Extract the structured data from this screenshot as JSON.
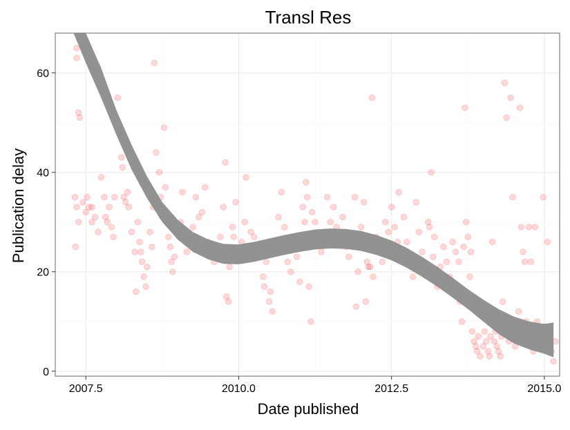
{
  "chart_data": {
    "type": "scatter",
    "title": "Transl Res",
    "xlabel": "Date published",
    "ylabel": "Publication delay",
    "xlim": [
      2007.0,
      2015.25
    ],
    "ylim": [
      -1,
      68
    ],
    "xticks": [
      2007.5,
      2010.0,
      2012.5,
      2015.0
    ],
    "xtick_labels": [
      "2007.5",
      "2010.0",
      "2012.5",
      "2015.0"
    ],
    "yticks": [
      0,
      20,
      40,
      60
    ],
    "ytick_labels": [
      "0",
      "20",
      "40",
      "60"
    ],
    "grid": true,
    "legend": "none",
    "point_color": "#ff0000",
    "point_opacity": 0.15,
    "smooth_color": "#8c8c8c",
    "points": [
      [
        2007.35,
        65
      ],
      [
        2007.35,
        63
      ],
      [
        2007.38,
        52
      ],
      [
        2007.4,
        51
      ],
      [
        2007.32,
        35
      ],
      [
        2007.35,
        33
      ],
      [
        2007.38,
        30
      ],
      [
        2007.33,
        25
      ],
      [
        2007.45,
        34
      ],
      [
        2007.5,
        32
      ],
      [
        2007.55,
        33
      ],
      [
        2007.6,
        30
      ],
      [
        2007.65,
        31
      ],
      [
        2007.7,
        28
      ],
      [
        2007.52,
        35
      ],
      [
        2007.6,
        33
      ],
      [
        2007.75,
        39
      ],
      [
        2007.8,
        35
      ],
      [
        2007.82,
        31
      ],
      [
        2007.85,
        30
      ],
      [
        2007.88,
        33
      ],
      [
        2007.92,
        29
      ],
      [
        2007.95,
        27
      ],
      [
        2007.97,
        35
      ],
      [
        2008.02,
        55
      ],
      [
        2008.05,
        48
      ],
      [
        2008.08,
        43
      ],
      [
        2008.1,
        41
      ],
      [
        2008.12,
        35
      ],
      [
        2008.15,
        34
      ],
      [
        2008.18,
        36
      ],
      [
        2008.2,
        33
      ],
      [
        2008.25,
        28
      ],
      [
        2008.3,
        24
      ],
      [
        2008.32,
        16
      ],
      [
        2008.35,
        30
      ],
      [
        2008.38,
        26
      ],
      [
        2008.4,
        24
      ],
      [
        2008.42,
        22
      ],
      [
        2008.45,
        19
      ],
      [
        2008.48,
        17
      ],
      [
        2008.5,
        21
      ],
      [
        2008.55,
        28
      ],
      [
        2008.58,
        25
      ],
      [
        2008.6,
        33
      ],
      [
        2008.62,
        62
      ],
      [
        2008.65,
        44
      ],
      [
        2008.7,
        40
      ],
      [
        2008.72,
        35
      ],
      [
        2008.75,
        31
      ],
      [
        2008.78,
        49
      ],
      [
        2008.8,
        37
      ],
      [
        2008.85,
        27
      ],
      [
        2008.88,
        25
      ],
      [
        2008.9,
        22
      ],
      [
        2008.92,
        20
      ],
      [
        2008.95,
        23
      ],
      [
        2009.0,
        28
      ],
      [
        2009.05,
        30
      ],
      [
        2009.08,
        36
      ],
      [
        2009.1,
        27
      ],
      [
        2009.15,
        24
      ],
      [
        2009.2,
        26
      ],
      [
        2009.25,
        29
      ],
      [
        2009.3,
        35
      ],
      [
        2009.35,
        31
      ],
      [
        2009.4,
        32
      ],
      [
        2009.45,
        37
      ],
      [
        2009.5,
        26
      ],
      [
        2009.55,
        23
      ],
      [
        2009.6,
        22
      ],
      [
        2009.62,
        25
      ],
      [
        2009.65,
        24
      ],
      [
        2009.7,
        27
      ],
      [
        2009.75,
        33
      ],
      [
        2009.78,
        42
      ],
      [
        2009.8,
        15
      ],
      [
        2009.83,
        14
      ],
      [
        2009.85,
        21
      ],
      [
        2009.88,
        24
      ],
      [
        2009.9,
        29
      ],
      [
        2009.92,
        27
      ],
      [
        2009.95,
        34
      ],
      [
        2010.0,
        23
      ],
      [
        2010.05,
        26
      ],
      [
        2010.1,
        30
      ],
      [
        2010.12,
        39
      ],
      [
        2010.15,
        25
      ],
      [
        2010.2,
        28
      ],
      [
        2010.25,
        27
      ],
      [
        2010.3,
        23
      ],
      [
        2010.35,
        24
      ],
      [
        2010.4,
        19
      ],
      [
        2010.42,
        17
      ],
      [
        2010.45,
        22
      ],
      [
        2010.5,
        14
      ],
      [
        2010.52,
        16
      ],
      [
        2010.55,
        12
      ],
      [
        2010.6,
        25
      ],
      [
        2010.65,
        31
      ],
      [
        2010.7,
        36
      ],
      [
        2010.75,
        29
      ],
      [
        2010.8,
        22
      ],
      [
        2010.85,
        20
      ],
      [
        2010.9,
        27
      ],
      [
        2010.95,
        23
      ],
      [
        2011.0,
        18
      ],
      [
        2011.05,
        33
      ],
      [
        2011.08,
        30
      ],
      [
        2011.1,
        38
      ],
      [
        2011.12,
        35
      ],
      [
        2011.15,
        17
      ],
      [
        2011.18,
        10
      ],
      [
        2011.2,
        32
      ],
      [
        2011.25,
        30
      ],
      [
        2011.3,
        26
      ],
      [
        2011.35,
        24
      ],
      [
        2011.4,
        28
      ],
      [
        2011.45,
        35
      ],
      [
        2011.5,
        30
      ],
      [
        2011.55,
        33
      ],
      [
        2011.6,
        29
      ],
      [
        2011.65,
        27
      ],
      [
        2011.7,
        31
      ],
      [
        2011.75,
        25
      ],
      [
        2011.8,
        23
      ],
      [
        2011.85,
        27
      ],
      [
        2011.9,
        35
      ],
      [
        2011.92,
        13
      ],
      [
        2011.95,
        20
      ],
      [
        2012.0,
        29
      ],
      [
        2012.05,
        34
      ],
      [
        2012.08,
        14
      ],
      [
        2012.1,
        22
      ],
      [
        2012.12,
        21
      ],
      [
        2012.15,
        21
      ],
      [
        2012.18,
        55
      ],
      [
        2012.2,
        19
      ],
      [
        2012.25,
        27
      ],
      [
        2012.3,
        25
      ],
      [
        2012.35,
        22
      ],
      [
        2012.4,
        30
      ],
      [
        2012.45,
        28
      ],
      [
        2012.5,
        33
      ],
      [
        2012.55,
        29
      ],
      [
        2012.6,
        26
      ],
      [
        2012.62,
        36
      ],
      [
        2012.65,
        24
      ],
      [
        2012.7,
        31
      ],
      [
        2012.75,
        26
      ],
      [
        2012.8,
        22
      ],
      [
        2012.85,
        19
      ],
      [
        2012.9,
        34
      ],
      [
        2012.95,
        28
      ],
      [
        2013.0,
        24
      ],
      [
        2013.05,
        20
      ],
      [
        2013.1,
        30
      ],
      [
        2013.12,
        29
      ],
      [
        2013.15,
        40
      ],
      [
        2013.18,
        23
      ],
      [
        2013.2,
        27
      ],
      [
        2013.25,
        17
      ],
      [
        2013.3,
        21
      ],
      [
        2013.35,
        25
      ],
      [
        2013.4,
        22
      ],
      [
        2013.45,
        19
      ],
      [
        2013.5,
        26
      ],
      [
        2013.55,
        24
      ],
      [
        2013.6,
        22
      ],
      [
        2013.62,
        14
      ],
      [
        2013.65,
        10
      ],
      [
        2013.68,
        25
      ],
      [
        2013.7,
        53
      ],
      [
        2013.72,
        30
      ],
      [
        2013.75,
        27
      ],
      [
        2013.78,
        19
      ],
      [
        2013.8,
        24
      ],
      [
        2013.82,
        8
      ],
      [
        2013.85,
        6
      ],
      [
        2013.88,
        5
      ],
      [
        2013.9,
        4
      ],
      [
        2013.92,
        7
      ],
      [
        2013.95,
        3
      ],
      [
        2014.0,
        5
      ],
      [
        2014.02,
        8
      ],
      [
        2014.05,
        6
      ],
      [
        2014.08,
        4
      ],
      [
        2014.1,
        3
      ],
      [
        2014.12,
        7
      ],
      [
        2014.15,
        26
      ],
      [
        2014.18,
        6
      ],
      [
        2014.2,
        8
      ],
      [
        2014.22,
        5
      ],
      [
        2014.25,
        4
      ],
      [
        2014.28,
        3
      ],
      [
        2014.3,
        7
      ],
      [
        2014.32,
        14
      ],
      [
        2014.35,
        58
      ],
      [
        2014.38,
        51
      ],
      [
        2014.4,
        9
      ],
      [
        2014.42,
        6
      ],
      [
        2014.45,
        55
      ],
      [
        2014.48,
        35
      ],
      [
        2014.5,
        8
      ],
      [
        2014.52,
        5
      ],
      [
        2014.55,
        7
      ],
      [
        2014.58,
        12
      ],
      [
        2014.6,
        53
      ],
      [
        2014.62,
        29
      ],
      [
        2014.65,
        24
      ],
      [
        2014.68,
        22
      ],
      [
        2014.7,
        10
      ],
      [
        2014.72,
        9
      ],
      [
        2014.75,
        29
      ],
      [
        2014.78,
        22
      ],
      [
        2014.8,
        6
      ],
      [
        2014.82,
        4
      ],
      [
        2014.85,
        29
      ],
      [
        2014.88,
        10
      ],
      [
        2014.9,
        7
      ],
      [
        2014.92,
        5
      ],
      [
        2014.95,
        8
      ],
      [
        2014.98,
        35
      ],
      [
        2015.0,
        9
      ],
      [
        2015.02,
        6
      ],
      [
        2015.05,
        26
      ],
      [
        2015.08,
        7
      ],
      [
        2015.1,
        5
      ],
      [
        2015.12,
        4
      ],
      [
        2015.15,
        2
      ],
      [
        2015.18,
        6
      ]
    ],
    "smooth": [
      [
        2007.3,
        71
      ],
      [
        2007.5,
        65
      ],
      [
        2007.75,
        58
      ],
      [
        2008.0,
        50
      ],
      [
        2008.25,
        43
      ],
      [
        2008.5,
        37
      ],
      [
        2008.75,
        32
      ],
      [
        2009.0,
        28.5
      ],
      [
        2009.25,
        26
      ],
      [
        2009.5,
        24.5
      ],
      [
        2009.75,
        23.6
      ],
      [
        2010.0,
        23.5
      ],
      [
        2010.25,
        24
      ],
      [
        2010.5,
        24.7
      ],
      [
        2010.75,
        25.4
      ],
      [
        2011.0,
        26
      ],
      [
        2011.25,
        26.5
      ],
      [
        2011.5,
        26.7
      ],
      [
        2011.75,
        26.6
      ],
      [
        2012.0,
        26.2
      ],
      [
        2012.25,
        25.4
      ],
      [
        2012.5,
        24.3
      ],
      [
        2012.75,
        22.8
      ],
      [
        2013.0,
        21
      ],
      [
        2013.25,
        19
      ],
      [
        2013.5,
        16.8
      ],
      [
        2013.75,
        14.5
      ],
      [
        2014.0,
        12.2
      ],
      [
        2014.25,
        10
      ],
      [
        2014.5,
        8.3
      ],
      [
        2014.75,
        7.2
      ],
      [
        2015.0,
        6.5
      ],
      [
        2015.15,
        6.3
      ]
    ],
    "smooth_band": [
      3,
      3,
      3,
      2.5,
      2.5,
      2.2,
      2,
      2,
      2,
      2,
      2,
      2,
      2,
      2,
      2,
      2,
      2,
      2,
      2,
      2,
      2,
      2,
      2,
      2,
      2,
      2,
      2,
      2.2,
      2.5,
      2.7,
      2.8,
      3,
      3.5
    ]
  }
}
